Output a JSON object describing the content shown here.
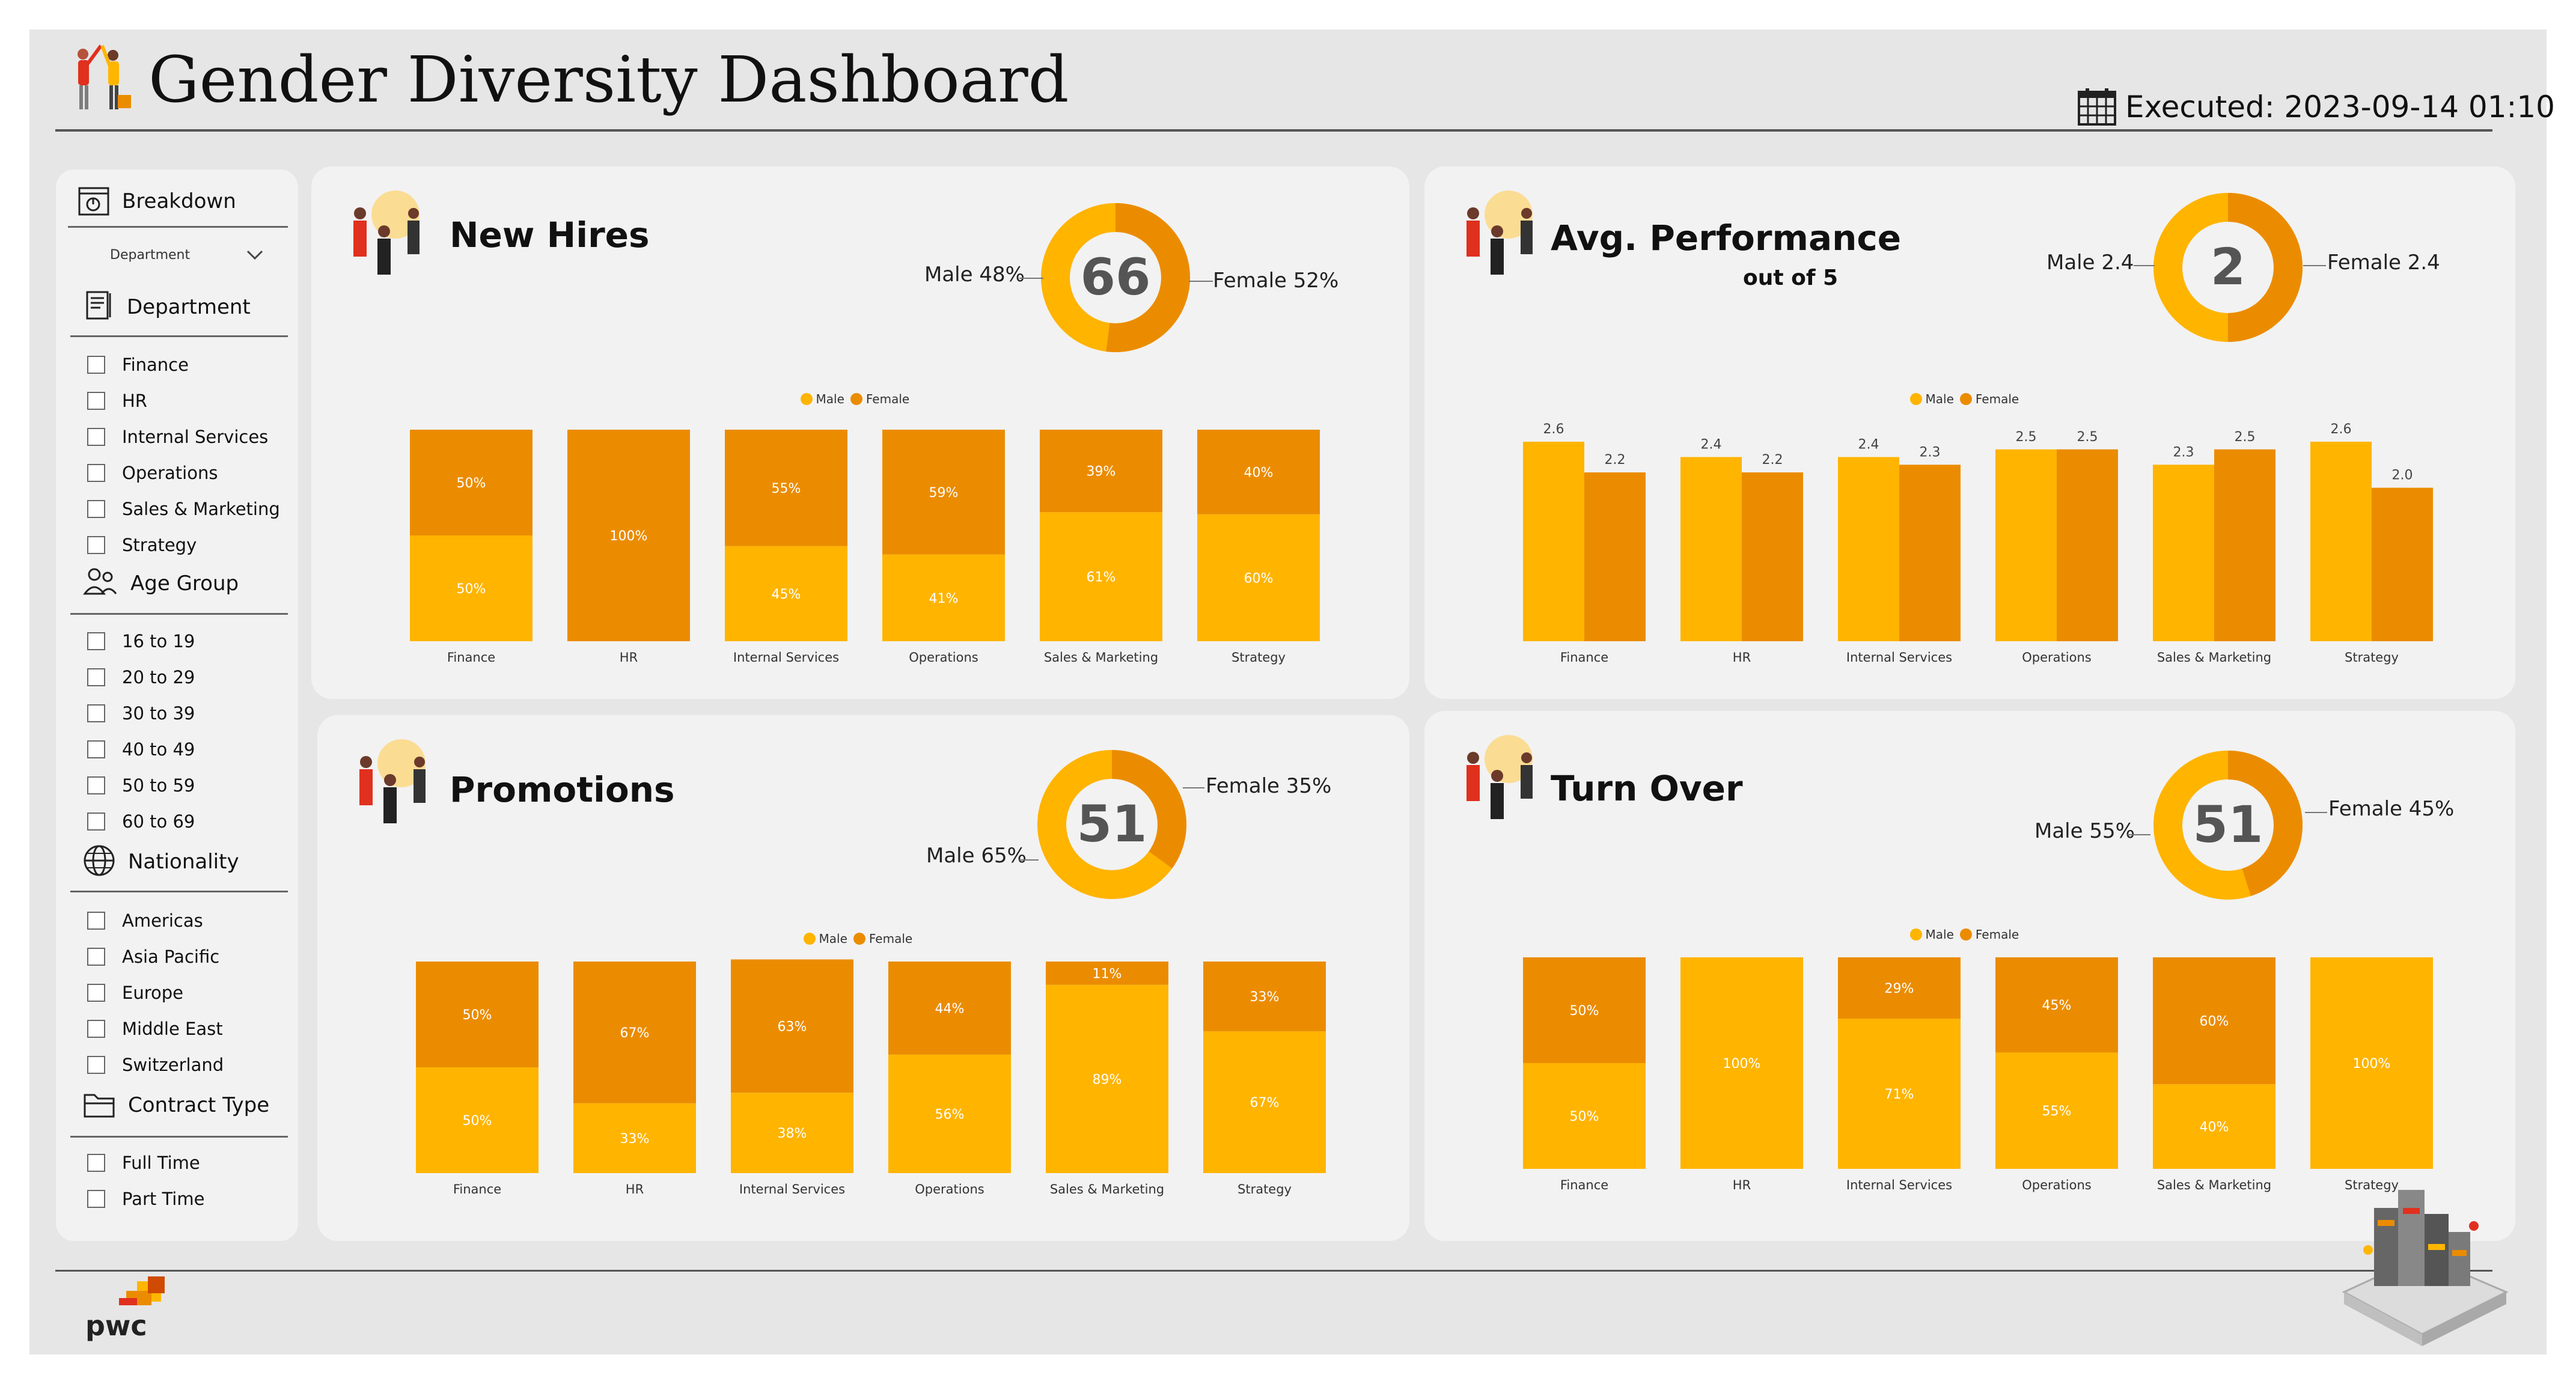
{
  "title": "Gender Diversity Dashboard",
  "executed": "Executed: 2023-09-14 01:10",
  "colors": {
    "male": "#FFB400",
    "female": "#EB8C00",
    "frame": "#e6e6e6",
    "card": "#f2f2f2"
  },
  "sidebar": {
    "breakdown": {
      "label": "Breakdown",
      "icon": "chart-window-icon",
      "selected": "Department"
    },
    "groups": [
      {
        "label": "Department",
        "icon": "document-icon",
        "items": [
          "Finance",
          "HR",
          "Internal Services",
          "Operations",
          "Sales & Marketing",
          "Strategy"
        ]
      },
      {
        "label": "Age Group",
        "icon": "people-icon",
        "items": [
          "16 to 19",
          "20 to 29",
          "30 to 39",
          "40 to 49",
          "50 to 59",
          "60 to 69"
        ]
      },
      {
        "label": "Nationality",
        "icon": "globe-icon",
        "items": [
          "Americas",
          "Asia Pacific",
          "Europe",
          "Middle East",
          "Switzerland"
        ]
      },
      {
        "label": "Contract Type",
        "icon": "folder-icon",
        "items": [
          "Full Time",
          "Part Time"
        ]
      }
    ]
  },
  "legend": {
    "male": "Male",
    "female": "Female"
  },
  "cards": {
    "new_hires": {
      "title": "New Hires",
      "donut": {
        "total": "66",
        "male_label": "Male 48%",
        "female_label": "Female 52%",
        "male_share": 48,
        "female_share": 52
      }
    },
    "performance": {
      "title": "Avg. Performance",
      "subtitle": "out of 5",
      "donut": {
        "total": "2",
        "male_label": "Male 2.4",
        "female_label": "Female 2.4",
        "male_share": 50,
        "female_share": 50
      }
    },
    "promotions": {
      "title": "Promotions",
      "donut": {
        "total": "51",
        "male_label": "Male 65%",
        "female_label": "Female 35%",
        "male_share": 65,
        "female_share": 35
      }
    },
    "turnover": {
      "title": "Turn Over",
      "donut": {
        "total": "51",
        "male_label": "Male 55%",
        "female_label": "Female 45%",
        "male_share": 55,
        "female_share": 45
      }
    }
  },
  "chart_data": [
    {
      "id": "new_hires",
      "type": "bar",
      "stacked": "percent",
      "categories": [
        "Finance",
        "HR",
        "Internal Services",
        "Operations",
        "Sales & Marketing",
        "Strategy"
      ],
      "series": [
        {
          "name": "Male",
          "values": [
            50,
            0,
            45,
            41,
            61,
            60
          ]
        },
        {
          "name": "Female",
          "values": [
            50,
            100,
            55,
            59,
            39,
            40
          ]
        }
      ],
      "ylim": [
        0,
        100
      ]
    },
    {
      "id": "performance",
      "type": "bar",
      "stacked": "none",
      "categories": [
        "Finance",
        "HR",
        "Internal Services",
        "Operations",
        "Sales & Marketing",
        "Strategy"
      ],
      "series": [
        {
          "name": "Male",
          "values": [
            2.6,
            2.4,
            2.4,
            2.5,
            2.3,
            2.6
          ]
        },
        {
          "name": "Female",
          "values": [
            2.2,
            2.2,
            2.3,
            2.5,
            2.5,
            2.0
          ]
        }
      ],
      "ylim": [
        0,
        2.6
      ]
    },
    {
      "id": "promotions",
      "type": "bar",
      "stacked": "percent",
      "categories": [
        "Finance",
        "HR",
        "Internal Services",
        "Operations",
        "Sales & Marketing",
        "Strategy"
      ],
      "series": [
        {
          "name": "Male",
          "values": [
            50,
            33,
            38,
            56,
            89,
            67
          ]
        },
        {
          "name": "Female",
          "values": [
            50,
            67,
            63,
            44,
            11,
            33
          ]
        }
      ],
      "ylim": [
        0,
        100
      ]
    },
    {
      "id": "turnover",
      "type": "bar",
      "stacked": "percent",
      "categories": [
        "Finance",
        "HR",
        "Internal Services",
        "Operations",
        "Sales & Marketing",
        "Strategy"
      ],
      "series": [
        {
          "name": "Male",
          "values": [
            50,
            100,
            71,
            55,
            40,
            100
          ]
        },
        {
          "name": "Female",
          "values": [
            50,
            0,
            29,
            45,
            60,
            0
          ]
        }
      ],
      "ylim": [
        0,
        100
      ]
    }
  ],
  "footer": {
    "logo_text": "pwc"
  }
}
